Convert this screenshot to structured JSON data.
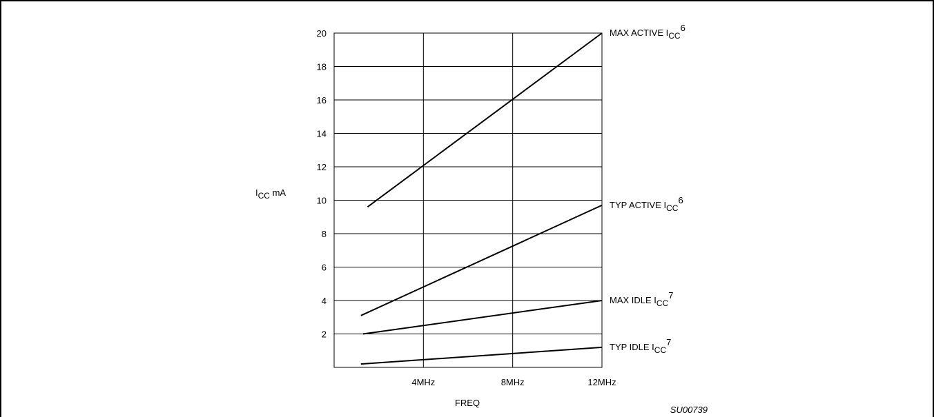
{
  "chart_data": {
    "type": "line",
    "xlabel": "FREQ",
    "ylabel": {
      "main": "I",
      "sub": "CC",
      "unit": " mA"
    },
    "x_tick_labels": [
      {
        "x": 4,
        "label": "4MHz"
      },
      {
        "x": 8,
        "label": "8MHz"
      },
      {
        "x": 12,
        "label": "12MHz"
      }
    ],
    "y_ticks": [
      2,
      4,
      6,
      8,
      10,
      12,
      14,
      16,
      18,
      20
    ],
    "xlim": [
      0,
      12
    ],
    "ylim": [
      0,
      20
    ],
    "grid": true,
    "series": [
      {
        "name": "MAX ACTIVE ICC",
        "label_main": "MAX ACTIVE I",
        "label_sub": "CC",
        "label_sup": "6",
        "x": [
          1.5,
          12
        ],
        "y": [
          9.6,
          20
        ]
      },
      {
        "name": "TYP ACTIVE ICC",
        "label_main": "TYP ACTIVE I",
        "label_sub": "CC",
        "label_sup": "6",
        "x": [
          1.2,
          12
        ],
        "y": [
          3.1,
          9.7
        ]
      },
      {
        "name": "MAX IDLE ICC",
        "label_main": "MAX IDLE I",
        "label_sub": "CC",
        "label_sup": "7",
        "x": [
          1.3,
          12
        ],
        "y": [
          2.0,
          4.0
        ]
      },
      {
        "name": "TYP IDLE ICC",
        "label_main": "TYP IDLE I",
        "label_sub": "CC",
        "label_sup": "7",
        "x": [
          1.2,
          12
        ],
        "y": [
          0.2,
          1.2
        ]
      }
    ],
    "figure_code": "SU00739"
  }
}
